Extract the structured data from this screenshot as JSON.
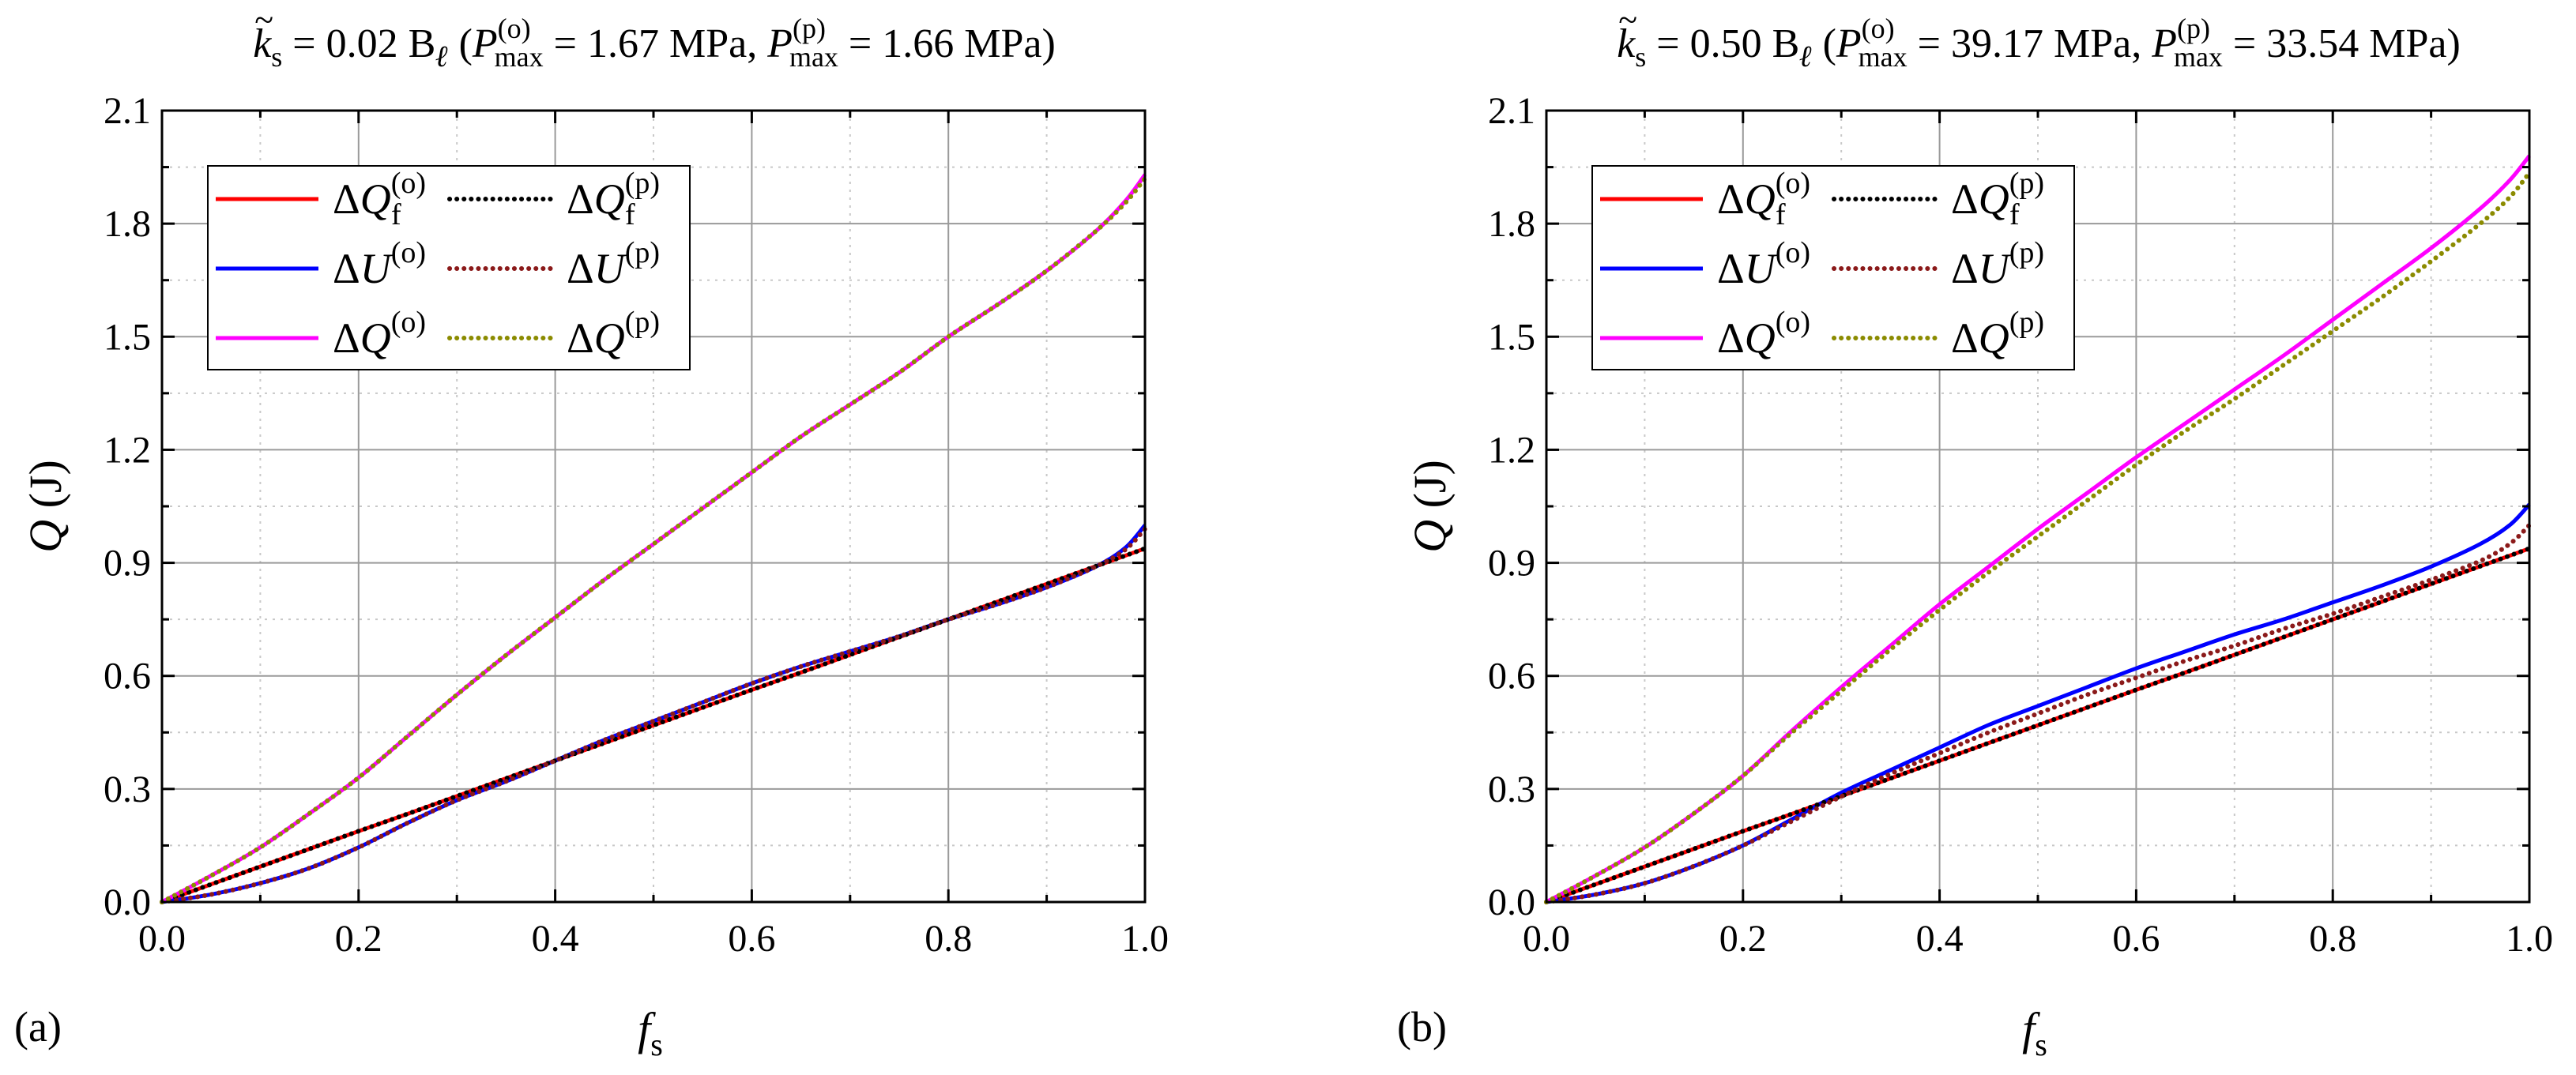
{
  "chart_data": [
    {
      "type": "line",
      "panel_label": "(a)",
      "title_parts": {
        "k": "k",
        "k_sub": "s",
        "k_value": "= 0.02 B",
        "k_unit_sub": "ℓ",
        "open_paren": "(",
        "p1": "P",
        "p1_sub": "max",
        "p1_sup": "(o)",
        "p1_value": "= 1.67 MPa,",
        "p2": "P",
        "p2_sub": "max",
        "p2_sup": "(p)",
        "p2_value": "= 1.66 MPa)"
      },
      "xlabel": "f",
      "xlabel_sub": "s",
      "ylabel": "Q (J)",
      "xlim": [
        0,
        1.0
      ],
      "ylim": [
        0,
        2.1
      ],
      "xticks": [
        "0.0",
        "0.2",
        "0.4",
        "0.6",
        "0.8",
        "1.0"
      ],
      "yticks": [
        "0.0",
        "0.3",
        "0.6",
        "0.9",
        "1.2",
        "1.5",
        "1.8",
        "2.1"
      ],
      "grid": true,
      "legend_position": "top-left",
      "x": [
        0,
        0.05,
        0.1,
        0.15,
        0.2,
        0.25,
        0.3,
        0.35,
        0.4,
        0.45,
        0.5,
        0.55,
        0.6,
        0.65,
        0.7,
        0.75,
        0.8,
        0.85,
        0.9,
        0.95,
        0.98,
        1.0
      ],
      "series": [
        {
          "name": "ΔQf(o)",
          "color": "#ff0000",
          "style": "solid",
          "values": [
            0,
            0.047,
            0.094,
            0.141,
            0.188,
            0.234,
            0.281,
            0.328,
            0.375,
            0.422,
            0.469,
            0.516,
            0.563,
            0.609,
            0.656,
            0.703,
            0.75,
            0.797,
            0.844,
            0.891,
            0.919,
            0.938
          ]
        },
        {
          "name": "ΔU(o)",
          "color": "#0000ff",
          "style": "solid",
          "values": [
            0,
            0.02,
            0.05,
            0.09,
            0.145,
            0.21,
            0.27,
            0.32,
            0.375,
            0.43,
            0.48,
            0.53,
            0.58,
            0.625,
            0.665,
            0.705,
            0.75,
            0.79,
            0.835,
            0.89,
            0.94,
            1.0
          ]
        },
        {
          "name": "ΔQ(o)",
          "color": "#ff00ff",
          "style": "solid",
          "values": [
            0,
            0.07,
            0.145,
            0.235,
            0.33,
            0.44,
            0.55,
            0.655,
            0.755,
            0.855,
            0.95,
            1.045,
            1.14,
            1.235,
            1.32,
            1.405,
            1.5,
            1.585,
            1.675,
            1.78,
            1.86,
            1.93
          ]
        },
        {
          "name": "ΔQf(p)",
          "color": "#000000",
          "style": "dotted",
          "values": [
            0,
            0.047,
            0.094,
            0.141,
            0.188,
            0.234,
            0.281,
            0.328,
            0.375,
            0.422,
            0.469,
            0.516,
            0.563,
            0.609,
            0.656,
            0.703,
            0.75,
            0.797,
            0.844,
            0.891,
            0.919,
            0.938
          ]
        },
        {
          "name": "ΔU(p)",
          "color": "#8b1a1a",
          "style": "dotted",
          "values": [
            0,
            0.02,
            0.05,
            0.09,
            0.145,
            0.21,
            0.27,
            0.32,
            0.375,
            0.43,
            0.48,
            0.53,
            0.58,
            0.625,
            0.665,
            0.705,
            0.75,
            0.79,
            0.835,
            0.89,
            0.935,
            0.99
          ]
        },
        {
          "name": "ΔQ(p)",
          "color": "#8b8b00",
          "style": "dotted",
          "values": [
            0,
            0.07,
            0.145,
            0.235,
            0.33,
            0.44,
            0.55,
            0.655,
            0.755,
            0.855,
            0.95,
            1.045,
            1.14,
            1.235,
            1.32,
            1.405,
            1.5,
            1.585,
            1.675,
            1.78,
            1.855,
            1.92
          ]
        }
      ],
      "legend": [
        {
          "prefix": "ΔQ",
          "sub": "f",
          "sup": "(o)",
          "color": "#ff0000",
          "style": "solid"
        },
        {
          "prefix": "ΔQ",
          "sub": "f",
          "sup": "(p)",
          "color": "#000000",
          "style": "dotted"
        },
        {
          "prefix": "ΔU",
          "sub": "",
          "sup": "(o)",
          "color": "#0000ff",
          "style": "solid"
        },
        {
          "prefix": "ΔU",
          "sub": "",
          "sup": "(p)",
          "color": "#8b1a1a",
          "style": "dotted"
        },
        {
          "prefix": "ΔQ",
          "sub": "",
          "sup": "(o)",
          "color": "#ff00ff",
          "style": "solid"
        },
        {
          "prefix": "ΔQ",
          "sub": "",
          "sup": "(p)",
          "color": "#8b8b00",
          "style": "dotted"
        }
      ]
    },
    {
      "type": "line",
      "panel_label": "(b)",
      "title_parts": {
        "k": "k",
        "k_sub": "s",
        "k_value": "= 0.50 B",
        "k_unit_sub": "ℓ",
        "open_paren": "(",
        "p1": "P",
        "p1_sub": "max",
        "p1_sup": "(o)",
        "p1_value": "= 39.17 MPa,",
        "p2": "P",
        "p2_sub": "max",
        "p2_sup": "(p)",
        "p2_value": "= 33.54 MPa)"
      },
      "xlabel": "f",
      "xlabel_sub": "s",
      "ylabel": "Q (J)",
      "xlim": [
        0,
        1.0
      ],
      "ylim": [
        0,
        2.1
      ],
      "xticks": [
        "0.0",
        "0.2",
        "0.4",
        "0.6",
        "0.8",
        "1.0"
      ],
      "yticks": [
        "0.0",
        "0.3",
        "0.6",
        "0.9",
        "1.2",
        "1.5",
        "1.8",
        "2.1"
      ],
      "grid": true,
      "legend_position": "top-left",
      "x": [
        0,
        0.05,
        0.1,
        0.15,
        0.2,
        0.25,
        0.3,
        0.35,
        0.4,
        0.45,
        0.5,
        0.55,
        0.6,
        0.65,
        0.7,
        0.75,
        0.8,
        0.85,
        0.9,
        0.95,
        0.98,
        1.0
      ],
      "series": [
        {
          "name": "ΔQf(o)",
          "color": "#ff0000",
          "style": "solid",
          "values": [
            0,
            0.047,
            0.094,
            0.141,
            0.188,
            0.234,
            0.281,
            0.328,
            0.375,
            0.422,
            0.469,
            0.516,
            0.563,
            0.609,
            0.656,
            0.703,
            0.75,
            0.797,
            0.844,
            0.891,
            0.919,
            0.938
          ]
        },
        {
          "name": "ΔU(o)",
          "color": "#0000ff",
          "style": "solid",
          "values": [
            0,
            0.02,
            0.05,
            0.095,
            0.15,
            0.22,
            0.29,
            0.35,
            0.41,
            0.47,
            0.52,
            0.57,
            0.62,
            0.665,
            0.71,
            0.75,
            0.795,
            0.84,
            0.89,
            0.95,
            1.0,
            1.055
          ]
        },
        {
          "name": "ΔQ(o)",
          "color": "#ff00ff",
          "style": "solid",
          "values": [
            0,
            0.07,
            0.145,
            0.235,
            0.335,
            0.455,
            0.57,
            0.68,
            0.79,
            0.89,
            0.99,
            1.085,
            1.18,
            1.27,
            1.36,
            1.45,
            1.545,
            1.64,
            1.735,
            1.84,
            1.915,
            1.98
          ]
        },
        {
          "name": "ΔQf(p)",
          "color": "#000000",
          "style": "dotted",
          "values": [
            0,
            0.047,
            0.094,
            0.141,
            0.188,
            0.234,
            0.281,
            0.328,
            0.375,
            0.422,
            0.469,
            0.516,
            0.563,
            0.609,
            0.656,
            0.703,
            0.75,
            0.797,
            0.844,
            0.891,
            0.919,
            0.938
          ]
        },
        {
          "name": "ΔU(p)",
          "color": "#8b1a1a",
          "style": "dotted",
          "values": [
            0,
            0.02,
            0.05,
            0.095,
            0.15,
            0.215,
            0.28,
            0.34,
            0.395,
            0.45,
            0.5,
            0.55,
            0.595,
            0.64,
            0.68,
            0.725,
            0.765,
            0.81,
            0.855,
            0.905,
            0.95,
            1.0
          ]
        },
        {
          "name": "ΔQ(p)",
          "color": "#8b8b00",
          "style": "dotted",
          "values": [
            0,
            0.07,
            0.145,
            0.235,
            0.335,
            0.45,
            0.56,
            0.67,
            0.775,
            0.875,
            0.97,
            1.065,
            1.16,
            1.25,
            1.335,
            1.425,
            1.515,
            1.605,
            1.7,
            1.8,
            1.87,
            1.935
          ]
        }
      ],
      "legend": [
        {
          "prefix": "ΔQ",
          "sub": "f",
          "sup": "(o)",
          "color": "#ff0000",
          "style": "solid"
        },
        {
          "prefix": "ΔQ",
          "sub": "f",
          "sup": "(p)",
          "color": "#000000",
          "style": "dotted"
        },
        {
          "prefix": "ΔU",
          "sub": "",
          "sup": "(o)",
          "color": "#0000ff",
          "style": "solid"
        },
        {
          "prefix": "ΔU",
          "sub": "",
          "sup": "(p)",
          "color": "#8b1a1a",
          "style": "dotted"
        },
        {
          "prefix": "ΔQ",
          "sub": "",
          "sup": "(o)",
          "color": "#ff00ff",
          "style": "solid"
        },
        {
          "prefix": "ΔQ",
          "sub": "",
          "sup": "(p)",
          "color": "#8b8b00",
          "style": "dotted"
        }
      ]
    }
  ]
}
